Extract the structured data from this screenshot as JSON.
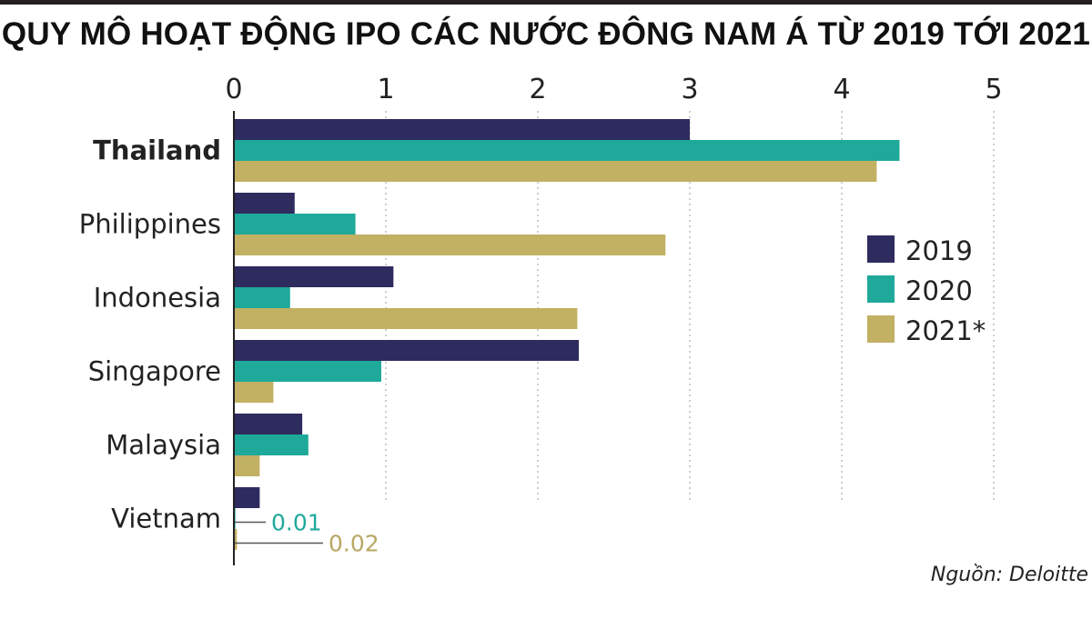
{
  "title": "QUY MÔ HOẠT ĐỘNG IPO CÁC NƯỚC ĐÔNG NAM Á TỪ 2019 TỚI 2021",
  "source": "Nguồn: Deloitte",
  "chart_data": {
    "type": "bar",
    "orientation": "horizontal",
    "title": "QUY MÔ HOẠT ĐỘNG IPO CÁC NƯỚC ĐÔNG NAM Á TỪ 2019 TỚI 2021",
    "categories": [
      "Thailand",
      "Philippines",
      "Indonesia",
      "Singapore",
      "Malaysia",
      "Vietnam"
    ],
    "highlight_category": "Thailand",
    "series": [
      {
        "name": "2019",
        "color": "#2e2b5e",
        "values": [
          3.0,
          0.4,
          1.05,
          2.27,
          0.45,
          0.17
        ]
      },
      {
        "name": "2020",
        "color": "#1fa99a",
        "values": [
          4.38,
          0.8,
          0.37,
          0.97,
          0.49,
          0.01
        ]
      },
      {
        "name": "2021*",
        "color": "#c2b063",
        "values": [
          4.23,
          2.84,
          2.26,
          0.26,
          0.17,
          0.02
        ]
      }
    ],
    "xlim": [
      0,
      5
    ],
    "xticks": [
      "0",
      "1",
      "2",
      "3",
      "4",
      "5"
    ],
    "xlabel": "",
    "ylabel": "",
    "grid": "vertical dotted",
    "legend_position": "right",
    "annotations": [
      {
        "category": "Vietnam",
        "series": "2020",
        "text": "0.01"
      },
      {
        "category": "Vietnam",
        "series": "2021*",
        "text": "0.02"
      }
    ]
  }
}
